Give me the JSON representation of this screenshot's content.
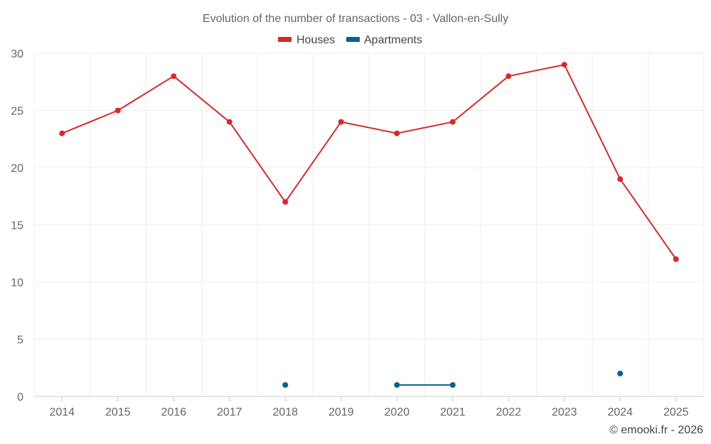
{
  "chart_data": {
    "type": "line",
    "title": "Evolution of the number of transactions - 03 - Vallon-en-Sully",
    "categories": [
      "2014",
      "2015",
      "2016",
      "2017",
      "2018",
      "2019",
      "2020",
      "2021",
      "2022",
      "2023",
      "2024",
      "2025"
    ],
    "ylim": [
      0,
      30
    ],
    "yticks": [
      0,
      5,
      10,
      15,
      20,
      25,
      30
    ],
    "grid": true,
    "legend_position": "top-center",
    "series": [
      {
        "name": "Houses",
        "color": "#d32a2a",
        "values": [
          23,
          25,
          28,
          24,
          17,
          24,
          23,
          24,
          28,
          29,
          19,
          12
        ]
      },
      {
        "name": "Apartments",
        "color": "#0a6196",
        "values": [
          null,
          null,
          null,
          null,
          1,
          null,
          1,
          1,
          null,
          null,
          2,
          null
        ]
      }
    ],
    "credit": "© emooki.fr - 2026"
  }
}
